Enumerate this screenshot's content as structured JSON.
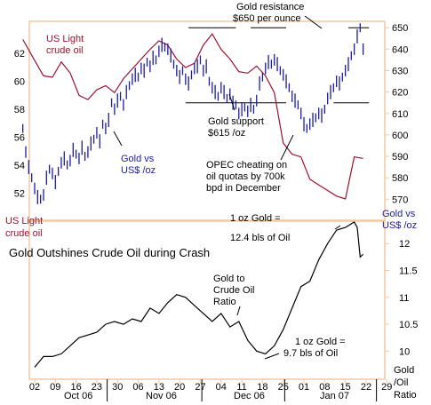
{
  "chart_data": [
    {
      "type": "line",
      "title": "",
      "colors": {
        "gold": "#1b1ba8",
        "oil": "#a01030",
        "frame": "#f4c9a0"
      },
      "left_axis": {
        "label": "US Light crude oil",
        "ticks": [
          52,
          54,
          56,
          58,
          60,
          62
        ],
        "range": [
          50.2,
          64.3
        ]
      },
      "right_axis": {
        "label": "Gold vs US$ /oz",
        "ticks": [
          570,
          580,
          590,
          600,
          610,
          620,
          630,
          640,
          650
        ],
        "range": [
          561,
          653
        ]
      },
      "series": [
        {
          "name": "US Light crude oil",
          "axis": "left",
          "x": [
            -4,
            0,
            3,
            6,
            9,
            12,
            15,
            18,
            21,
            24,
            27,
            30,
            33,
            36,
            39,
            42,
            45,
            48,
            51,
            54,
            57,
            60,
            63,
            66,
            69,
            72,
            75,
            78,
            81,
            84,
            87,
            90,
            93,
            96,
            99,
            102,
            105,
            108,
            111
          ],
          "y": [
            63.0,
            61.5,
            60.4,
            60.3,
            61.4,
            60.6,
            59.0,
            58.7,
            59.4,
            59.7,
            59.2,
            60.2,
            60.9,
            61.6,
            62.3,
            62.9,
            62.6,
            61.6,
            61.0,
            61.3,
            62.6,
            63.4,
            62.3,
            61.6,
            60.7,
            60.6,
            61.1,
            60.4,
            59.2,
            55.6,
            54.8,
            54.6,
            53.0,
            52.6,
            52.2,
            51.8,
            51.6,
            54.6,
            54.5
          ]
        },
        {
          "name": "Gold vs US$ /oz",
          "axis": "right",
          "x": [
            -4,
            -3,
            -2,
            -1,
            0,
            1,
            2,
            3,
            4,
            5,
            6,
            7,
            8,
            9,
            10,
            11,
            12,
            13,
            14,
            15,
            16,
            17,
            18,
            19,
            20,
            21,
            22,
            23,
            24,
            25,
            26,
            27,
            28,
            29,
            30,
            31,
            32,
            33,
            34,
            35,
            36,
            37,
            38,
            39,
            40,
            41,
            42,
            43,
            44,
            45,
            46,
            47,
            48,
            49,
            50,
            51,
            52,
            53,
            54,
            55,
            56,
            57,
            58,
            59,
            60,
            61,
            62,
            63,
            64,
            65,
            66,
            67,
            68,
            69,
            70,
            71,
            72,
            73,
            74,
            75,
            76,
            77,
            78,
            79,
            80,
            81,
            82,
            83,
            84,
            85,
            86,
            87,
            88,
            89,
            90,
            91,
            92,
            93,
            94,
            95,
            96,
            97,
            98,
            99,
            100,
            101,
            102,
            103,
            104,
            105,
            106,
            107,
            108,
            109,
            110,
            111
          ],
          "y": [
            603,
            592,
            585,
            580,
            575,
            571,
            570,
            572,
            580,
            584,
            582,
            578,
            583,
            587,
            589,
            586,
            588,
            593,
            591,
            589,
            594,
            590,
            592,
            596,
            598,
            601,
            597,
            605,
            603,
            607,
            615,
            612,
            616,
            618,
            614,
            620,
            623,
            626,
            628,
            627,
            631,
            630,
            634,
            632,
            636,
            635,
            639,
            642,
            641,
            640,
            637,
            633,
            630,
            627,
            630,
            626,
            624,
            628,
            631,
            632,
            635,
            630,
            632,
            625,
            622,
            620,
            618,
            622,
            620,
            617,
            619,
            615,
            614,
            610,
            612,
            613,
            611,
            614,
            612,
            616,
            624,
            627,
            631,
            634,
            633,
            635,
            633,
            630,
            628,
            625,
            622,
            618,
            616,
            614,
            610,
            605,
            603,
            605,
            607,
            608,
            610,
            609,
            612,
            617,
            620,
            622,
            625,
            624,
            627,
            630,
            633,
            637,
            640,
            646,
            650,
            640
          ]
        }
      ],
      "annotations": [
        "Gold resistance",
        "$650 per ounce",
        "Gold support",
        "$615 /oz",
        "OPEC cheating on",
        "oil quotas by 700k",
        "bpd in December"
      ],
      "reference_lines": [
        {
          "label": "resistance",
          "y": 650,
          "x_ranges": [
            [
              52,
              68
            ],
            [
              73,
              85
            ],
            [
              106,
              113
            ]
          ]
        },
        {
          "label": "support",
          "y": 615,
          "x_ranges": [
            [
              51,
              65
            ],
            [
              65,
              85
            ],
            [
              101,
              113
            ]
          ]
        }
      ]
    },
    {
      "type": "line",
      "title": "Gold Outshines Crude Oil during Crash",
      "right_axis": {
        "label": "Gold /Oil Ratio",
        "ticks": [
          10,
          10.5,
          11,
          11.5,
          12
        ],
        "range": [
          9.51,
          12.4
        ]
      },
      "x_axis": {
        "ticks": [
          0,
          7,
          14,
          21,
          28,
          35,
          42,
          49,
          56,
          63,
          70,
          77,
          84,
          91,
          98,
          105,
          112,
          119
        ],
        "tick_labels": [
          "02",
          "09",
          "16",
          "23",
          "30",
          "06",
          "13",
          "20",
          "27",
          "04",
          "11",
          "18",
          "25",
          "01",
          "08",
          "15",
          "22",
          "29"
        ],
        "month_labels": [
          "Oct 06",
          "Nov 06",
          "Dec 06",
          "Jan 07"
        ]
      },
      "series": [
        {
          "name": "",
          "axis": "right",
          "x": [
            0,
            3,
            6,
            9,
            12,
            15,
            18,
            21,
            24,
            27,
            30,
            33,
            36,
            39,
            42,
            45,
            48,
            51,
            54,
            57,
            60,
            63,
            66,
            69,
            72,
            75,
            78,
            81,
            84,
            87,
            90,
            93,
            96,
            99,
            102,
            105,
            108,
            109,
            110,
            111
          ],
          "y": [
            9.7,
            9.9,
            9.9,
            9.95,
            10.1,
            10.25,
            10.3,
            10.35,
            10.5,
            10.55,
            10.5,
            10.6,
            10.55,
            10.8,
            10.7,
            10.9,
            11.05,
            11.0,
            10.85,
            10.7,
            10.55,
            10.7,
            10.45,
            10.55,
            10.2,
            10.0,
            9.95,
            10.1,
            10.4,
            10.8,
            11.2,
            11.3,
            11.7,
            12.0,
            12.25,
            12.3,
            12.4,
            12.3,
            11.75,
            11.8
          ]
        }
      ],
      "annotations": [
        "1 oz Gold =",
        "12.4 bls of Oil",
        "Gold to",
        "Crude Oil",
        "Ratio",
        "1 oz Gold =",
        "9.7 bls of Oil"
      ]
    }
  ]
}
